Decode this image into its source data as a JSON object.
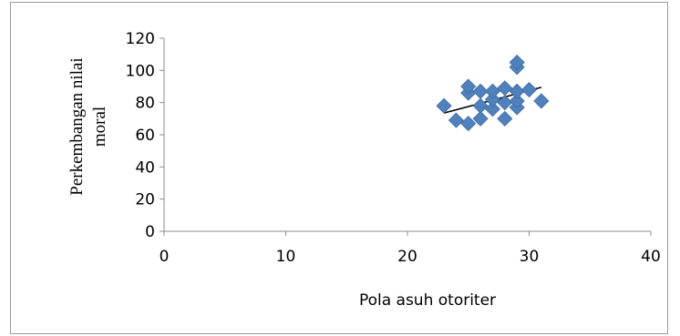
{
  "chart_data": {
    "type": "scatter",
    "title": "",
    "xlabel": "Pola asuh otoriter",
    "ylabel_lines": [
      "Perkembangan nilai",
      "moral"
    ],
    "xlim": [
      0,
      40
    ],
    "ylim": [
      0,
      120
    ],
    "xticks": [
      0,
      10,
      20,
      30,
      40
    ],
    "yticks": [
      0,
      20,
      40,
      60,
      80,
      100,
      120
    ],
    "marker": "diamond",
    "marker_color": "#4f81bd",
    "trendline_color": "#000000",
    "grid": false,
    "legend": "none",
    "points": [
      {
        "x": 23,
        "y": 78
      },
      {
        "x": 24,
        "y": 69
      },
      {
        "x": 25,
        "y": 67
      },
      {
        "x": 25,
        "y": 86
      },
      {
        "x": 25,
        "y": 90
      },
      {
        "x": 26,
        "y": 70
      },
      {
        "x": 26,
        "y": 78
      },
      {
        "x": 26,
        "y": 87
      },
      {
        "x": 27,
        "y": 76
      },
      {
        "x": 27,
        "y": 82
      },
      {
        "x": 27,
        "y": 87
      },
      {
        "x": 28,
        "y": 70
      },
      {
        "x": 28,
        "y": 80
      },
      {
        "x": 28,
        "y": 89
      },
      {
        "x": 29,
        "y": 77
      },
      {
        "x": 29,
        "y": 81
      },
      {
        "x": 29,
        "y": 87
      },
      {
        "x": 29,
        "y": 102
      },
      {
        "x": 29,
        "y": 105
      },
      {
        "x": 30,
        "y": 88
      },
      {
        "x": 31,
        "y": 81
      }
    ],
    "trendline": {
      "x_start": 23,
      "y_start": 73.5,
      "x_end": 31,
      "y_end": 89.5
    }
  }
}
